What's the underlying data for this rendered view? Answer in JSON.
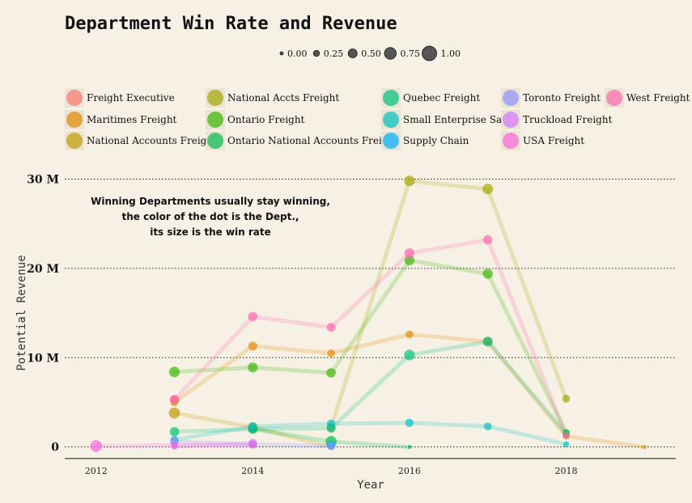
{
  "chart_data": {
    "type": "line",
    "title": "Department Win Rate and Revenue",
    "xlabel": "Year",
    "ylabel": "Potential Revenue",
    "xlim": [
      2011.6,
      2019.4
    ],
    "ylim": [
      -1.3,
      31.5
    ],
    "x_ticks": [
      {
        "value": 2012,
        "label": "2012"
      },
      {
        "value": 2014,
        "label": "2014"
      },
      {
        "value": 2016,
        "label": "2016"
      },
      {
        "value": 2018,
        "label": "2018"
      }
    ],
    "y_ticks": [
      {
        "value": 0,
        "label": "0"
      },
      {
        "value": 10,
        "label": "10 M"
      },
      {
        "value": 20,
        "label": "20 M"
      },
      {
        "value": 30,
        "label": "30 M"
      }
    ],
    "grid": "horizontal dotted",
    "size_legend": {
      "title": "",
      "values": [
        {
          "value": 0.0,
          "label": "0.00"
        },
        {
          "value": 0.25,
          "label": "0.25"
        },
        {
          "value": 0.5,
          "label": "0.50"
        },
        {
          "value": 0.75,
          "label": "0.75"
        },
        {
          "value": 1.0,
          "label": "1.00"
        }
      ]
    },
    "legend_placement": "top",
    "annotation": [
      "Winning Departments usually stay winning,",
      "the color of the dot is the Dept.,",
      "its size is the win rate"
    ],
    "series": [
      {
        "name": "Freight Executive",
        "color": "#f8766d",
        "points": [
          [
            2013,
            5.3,
            0.55
          ]
        ]
      },
      {
        "name": "Maritimes Freight",
        "color": "#e58700",
        "points": [
          [
            2013,
            5.0,
            0.4
          ],
          [
            2014,
            11.3,
            0.5
          ],
          [
            2015,
            10.5,
            0.4
          ],
          [
            2016,
            12.6,
            0.4
          ],
          [
            2017,
            11.8,
            0.45
          ],
          [
            2018,
            1.2,
            0.3
          ],
          [
            2019,
            0.0,
            0.05
          ]
        ]
      },
      {
        "name": "National Accounts Freight",
        "color": "#c09b00",
        "points": [
          [
            2013,
            3.8,
            0.7
          ],
          [
            2014,
            2.2,
            0.6
          ],
          [
            2015,
            0.0,
            0.1
          ]
        ]
      },
      {
        "name": "National Accts Freight",
        "color": "#a3a500",
        "points": [
          [
            2015,
            2.2,
            0.5
          ],
          [
            2016,
            29.8,
            0.65
          ],
          [
            2017,
            28.9,
            0.65
          ],
          [
            2018,
            5.4,
            0.4
          ]
        ]
      },
      {
        "name": "Ontario Freight",
        "color": "#39b600",
        "points": [
          [
            2013,
            8.4,
            0.65
          ],
          [
            2014,
            8.9,
            0.6
          ],
          [
            2015,
            8.3,
            0.55
          ],
          [
            2016,
            20.9,
            0.6
          ],
          [
            2017,
            19.4,
            0.6
          ],
          [
            2018,
            1.6,
            0.35
          ]
        ]
      },
      {
        "name": "Ontario National Accounts Freight",
        "color": "#00bb4e",
        "points": [
          [
            2014,
            2.0,
            0.55
          ],
          [
            2015,
            0.6,
            0.7
          ],
          [
            2016,
            0.0,
            0.05
          ]
        ]
      },
      {
        "name": "Quebec Freight",
        "color": "#00bf7d",
        "points": [
          [
            2013,
            1.7,
            0.55
          ],
          [
            2014,
            2.0,
            0.5
          ],
          [
            2015,
            2.1,
            0.5
          ],
          [
            2016,
            10.3,
            0.65
          ],
          [
            2017,
            11.8,
            0.6
          ],
          [
            2018,
            1.5,
            0.35
          ]
        ]
      },
      {
        "name": "Small Enterprise Sales",
        "color": "#00bfc4",
        "points": [
          [
            2013,
            0.8,
            0.4
          ],
          [
            2014,
            2.3,
            0.45
          ],
          [
            2015,
            2.6,
            0.45
          ],
          [
            2016,
            2.7,
            0.45
          ],
          [
            2017,
            2.3,
            0.4
          ],
          [
            2018,
            0.3,
            0.25
          ]
        ]
      },
      {
        "name": "Supply Chain",
        "color": "#00acfc",
        "points": [
          [
            2015,
            0.2,
            0.5
          ]
        ]
      },
      {
        "name": "Toronto Freight",
        "color": "#8b93ff",
        "points": [
          [
            2013,
            0.6,
            0.5
          ],
          [
            2014,
            0.3,
            0.45
          ],
          [
            2015,
            0.1,
            0.45
          ]
        ]
      },
      {
        "name": "Truckload Freight",
        "color": "#d575fe",
        "points": [
          [
            2013,
            0.05,
            0.3
          ],
          [
            2014,
            0.4,
            0.5
          ]
        ]
      },
      {
        "name": "USA Freight",
        "color": "#f962dd",
        "points": [
          [
            2012,
            0.1,
            0.75
          ],
          [
            2013,
            0.2,
            0.3
          ],
          [
            2014,
            0.2,
            0.3
          ]
        ]
      },
      {
        "name": "West Freight",
        "color": "#ff65ac",
        "points": [
          [
            2013,
            5.3,
            0.5
          ],
          [
            2014,
            14.6,
            0.55
          ],
          [
            2015,
            13.4,
            0.5
          ],
          [
            2016,
            21.7,
            0.6
          ],
          [
            2017,
            23.2,
            0.55
          ],
          [
            2018,
            1.3,
            0.3
          ]
        ]
      }
    ]
  }
}
